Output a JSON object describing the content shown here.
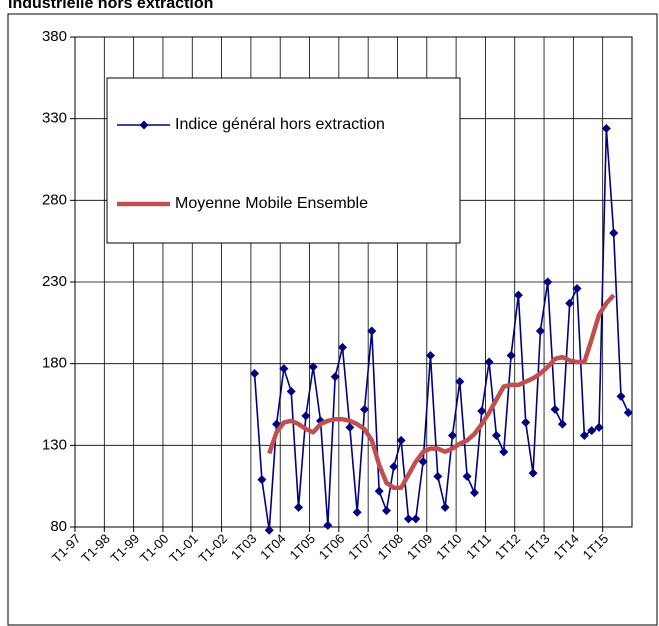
{
  "chart_data": {
    "type": "line",
    "title": "Industrielle hors extraction",
    "categories": [
      "T1-97",
      null,
      null,
      null,
      "T1-98",
      null,
      null,
      null,
      "T1-99",
      null,
      null,
      null,
      "T1-00",
      null,
      null,
      null,
      "T1-01",
      null,
      null,
      null,
      "T1-02",
      null,
      null,
      null,
      "1T03",
      null,
      null,
      null,
      "1T04",
      null,
      null,
      null,
      "1T05",
      null,
      null,
      null,
      "1T06",
      null,
      null,
      null,
      "1T07",
      null,
      null,
      null,
      "1T08",
      null,
      null,
      null,
      "1T09",
      null,
      null,
      null,
      "1T10",
      null,
      null,
      null,
      "1T11",
      null,
      null,
      null,
      "1T12",
      null,
      null,
      null,
      "1T13",
      null,
      null,
      null,
      "1T14",
      null,
      null,
      null,
      "1T15",
      null,
      null,
      null
    ],
    "series": [
      {
        "name": "Indice général hors extraction",
        "color": "#000080",
        "marker": "diamond",
        "values": [
          null,
          null,
          null,
          null,
          null,
          null,
          null,
          null,
          null,
          null,
          null,
          null,
          null,
          null,
          null,
          null,
          null,
          null,
          null,
          null,
          null,
          null,
          null,
          null,
          174,
          109,
          78,
          143,
          177,
          163,
          92,
          148,
          178,
          145,
          81,
          172,
          190,
          141,
          89,
          152,
          200,
          102,
          90,
          117,
          133,
          85,
          85,
          120,
          185,
          111,
          92,
          136,
          169,
          111,
          101,
          151,
          181,
          136,
          126,
          185,
          222,
          144,
          113,
          200,
          230,
          152,
          143,
          217,
          226,
          136,
          139,
          141,
          324,
          260,
          160,
          150
        ]
      },
      {
        "name": "Moyenne Mobile Ensemble",
        "color": "#c0504d",
        "marker": null,
        "values": [
          null,
          null,
          null,
          null,
          null,
          null,
          null,
          null,
          null,
          null,
          null,
          null,
          null,
          null,
          null,
          null,
          null,
          null,
          null,
          null,
          null,
          null,
          null,
          null,
          null,
          null,
          125,
          138,
          144,
          145,
          143,
          140,
          138,
          143,
          145,
          146,
          146,
          145,
          143,
          140,
          133,
          118,
          107,
          104,
          104,
          112,
          120,
          126,
          128,
          128,
          126,
          128,
          131,
          133,
          137,
          143,
          150,
          158,
          166,
          167,
          167,
          169,
          171,
          174,
          178,
          183,
          184,
          182,
          181,
          181,
          195,
          210,
          217,
          222,
          null,
          null
        ]
      }
    ],
    "ylim": [
      80,
      380
    ],
    "yticks": [
      80,
      130,
      180,
      230,
      280,
      330,
      380
    ],
    "grid": true,
    "legend": "upper left"
  }
}
